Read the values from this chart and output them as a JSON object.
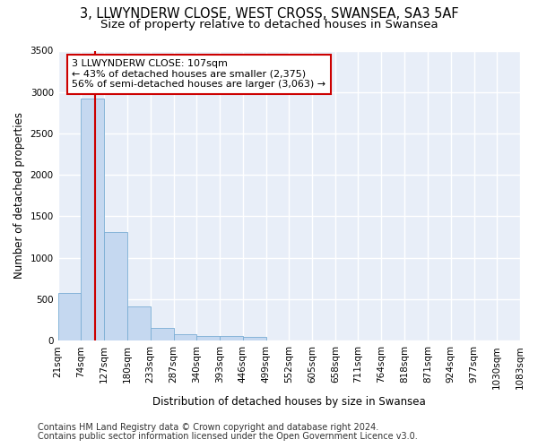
{
  "title1": "3, LLWYNDERW CLOSE, WEST CROSS, SWANSEA, SA3 5AF",
  "title2": "Size of property relative to detached houses in Swansea",
  "xlabel": "Distribution of detached houses by size in Swansea",
  "ylabel": "Number of detached properties",
  "footnote1": "Contains HM Land Registry data © Crown copyright and database right 2024.",
  "footnote2": "Contains public sector information licensed under the Open Government Licence v3.0.",
  "bar_edges": [
    21,
    74,
    127,
    180,
    233,
    287,
    340,
    393,
    446,
    499,
    552,
    605,
    658,
    711,
    764,
    818,
    871,
    924,
    977,
    1030,
    1083
  ],
  "bar_heights": [
    570,
    2920,
    1310,
    410,
    155,
    80,
    60,
    55,
    45,
    0,
    0,
    0,
    0,
    0,
    0,
    0,
    0,
    0,
    0,
    0
  ],
  "bar_color": "#c5d8f0",
  "bar_edgecolor": "#7aadd4",
  "vline_x": 107,
  "vline_color": "#cc0000",
  "annotation_text": "3 LLWYNDERW CLOSE: 107sqm\n← 43% of detached houses are smaller (2,375)\n56% of semi-detached houses are larger (3,063) →",
  "annotation_bbox_edgecolor": "#cc0000",
  "annotation_bbox_facecolor": "white",
  "ylim": [
    0,
    3500
  ],
  "yticks": [
    0,
    500,
    1000,
    1500,
    2000,
    2500,
    3000,
    3500
  ],
  "bg_color": "#e8eef8",
  "grid_color": "white",
  "title1_fontsize": 10.5,
  "title2_fontsize": 9.5,
  "axis_fontsize": 8.5,
  "tick_fontsize": 7.5,
  "annotation_fontsize": 8,
  "footnote_fontsize": 7
}
